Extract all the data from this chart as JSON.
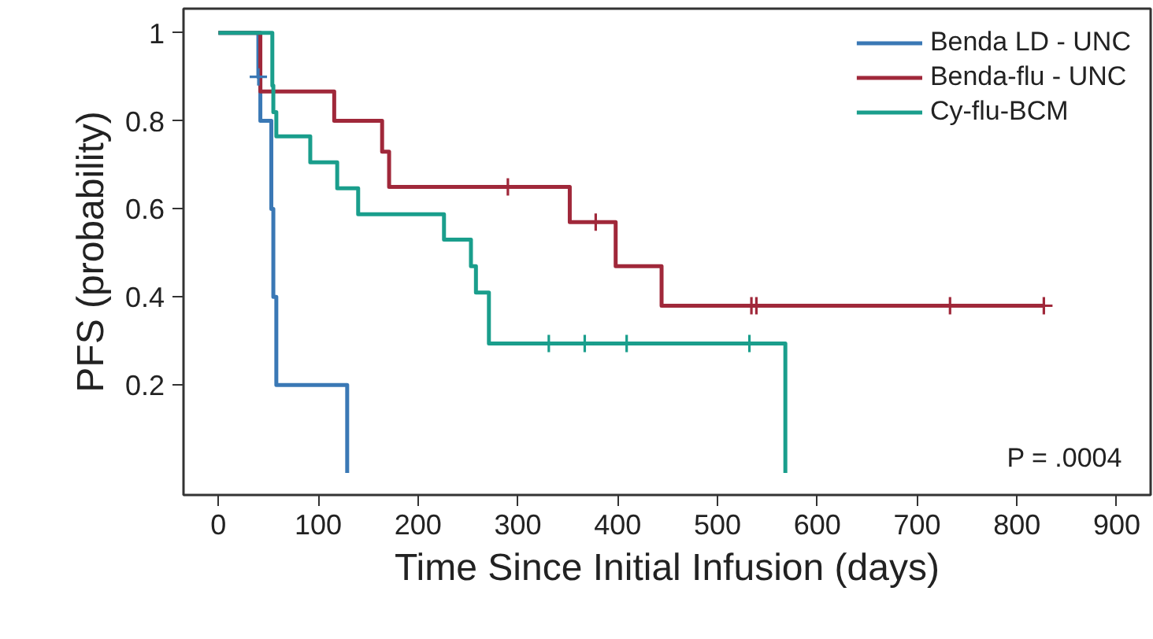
{
  "chart_data": {
    "type": "step",
    "xlabel": "Time Since Initial Infusion (days)",
    "ylabel": "PFS (probability)",
    "xlim": [
      -35,
      934
    ],
    "ylim": [
      -0.05,
      1.055
    ],
    "xticks": [
      0,
      100,
      200,
      300,
      400,
      500,
      600,
      700,
      800,
      900
    ],
    "yticks": [
      {
        "value": 0.2,
        "label": "0.2"
      },
      {
        "value": 0.4,
        "label": "0.4"
      },
      {
        "value": 0.6,
        "label": "0.6"
      },
      {
        "value": 0.8,
        "label": "0.8"
      },
      {
        "value": 1,
        "label": "1"
      }
    ],
    "grid": false,
    "legend": "top right",
    "line_style": "solid",
    "annotations": [
      "P = .0004"
    ],
    "series": [
      {
        "name": "Benda LD - UNC",
        "color": "#3a78b5",
        "x": [
          0,
          40,
          42,
          53,
          55,
          58,
          129
        ],
        "values": [
          1,
          0.9,
          0.8,
          0.6,
          0.4,
          0.2,
          0
        ]
      },
      {
        "name": "Benda-flu - UNC",
        "color": "#a0283a",
        "x": [
          0,
          42,
          116,
          164,
          171,
          352,
          398,
          444,
          827
        ],
        "values": [
          1,
          0.867,
          0.8,
          0.73,
          0.65,
          0.57,
          0.47,
          0.38,
          0.38
        ]
      },
      {
        "name": "Cy-flu-BCM",
        "color": "#1a9e8c",
        "x": [
          0,
          54,
          55,
          58,
          92,
          119,
          140,
          226,
          253,
          258,
          271,
          568
        ],
        "values": [
          1,
          0.88,
          0.82,
          0.765,
          0.706,
          0.647,
          0.588,
          0.53,
          0.47,
          0.41,
          0.294,
          0
        ]
      },
      {
        "type": "scatter",
        "color": "#3a78b5",
        "x": [
          40
        ],
        "values": [
          0.9
        ]
      },
      {
        "type": "scatter",
        "color": "#a0283a",
        "x": [
          290,
          378,
          534,
          539,
          733,
          827
        ],
        "values": [
          0.65,
          0.57,
          0.38,
          0.38,
          0.38,
          0.38
        ]
      },
      {
        "type": "scatter",
        "color": "#1a9e8c",
        "x": [
          331,
          367,
          409,
          532
        ],
        "values": [
          0.294,
          0.294,
          0.294,
          0.294
        ]
      }
    ]
  }
}
